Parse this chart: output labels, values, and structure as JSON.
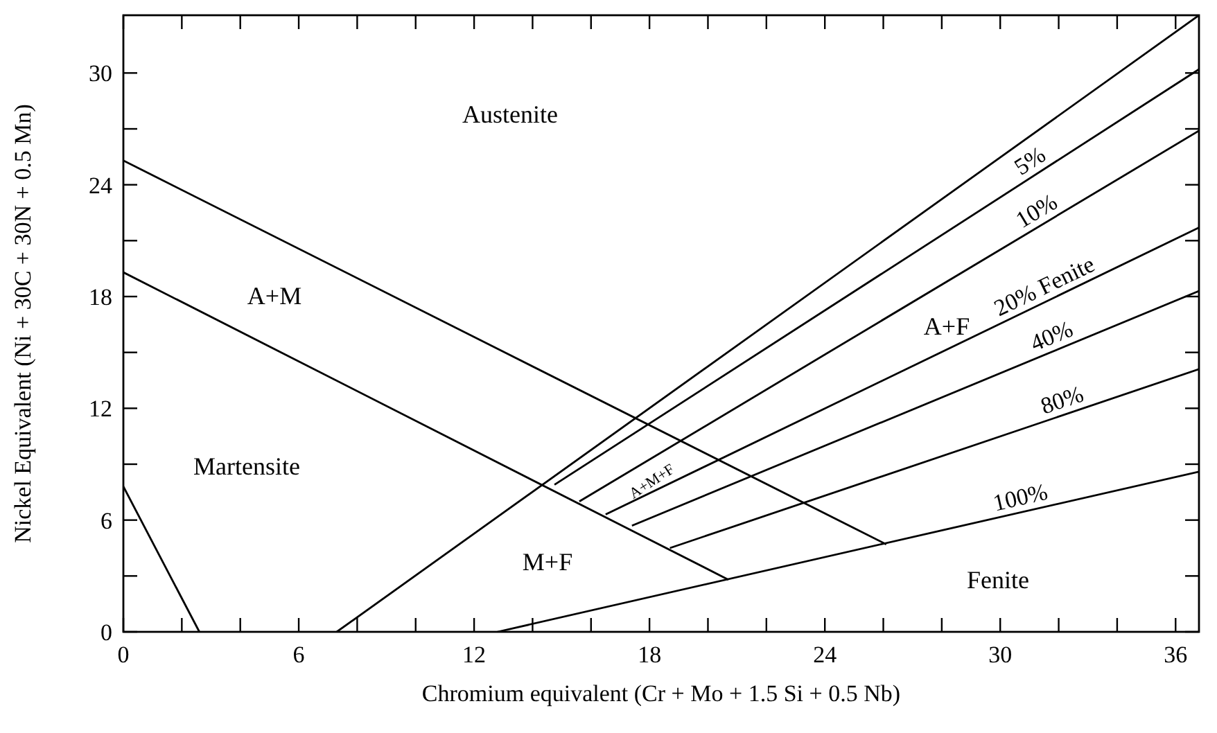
{
  "chart_data": {
    "type": "line",
    "xlabel": "Chromium equivalent (Cr + Mo + 1.5 Si + 0.5 Nb)",
    "ylabel": "Nickel Equivalent (Ni + 30C + 30N + 0.5 Mn)",
    "xlim": [
      0,
      36.8
    ],
    "ylim": [
      0,
      33.1
    ],
    "xticks": [
      0,
      {
        "value": 2,
        "label": null
      },
      {
        "value": 4,
        "label": null
      },
      6,
      {
        "value": 8,
        "label": null
      },
      {
        "value": 10,
        "label": null
      },
      12,
      {
        "value": 14,
        "label": null
      },
      {
        "value": 16,
        "label": null
      },
      18,
      {
        "value": 20,
        "label": null
      },
      {
        "value": 22,
        "label": null
      },
      24,
      {
        "value": 26,
        "label": null
      },
      {
        "value": 28,
        "label": null
      },
      30,
      {
        "value": 32,
        "label": null
      },
      {
        "value": 34,
        "label": null
      },
      36
    ],
    "yticks": [
      0,
      {
        "value": 3,
        "label": null
      },
      6,
      {
        "value": 9,
        "label": null
      },
      12,
      {
        "value": 15,
        "label": null
      },
      18,
      {
        "value": 21,
        "label": null
      },
      24,
      {
        "value": 27,
        "label": null
      },
      30
    ],
    "grid": false,
    "marker": "none",
    "line_style": "solid",
    "series": [
      {
        "color": "#000000",
        "x": [
          0,
          2.6
        ],
        "values": [
          7.8,
          0
        ]
      },
      {
        "color": "#000000",
        "x": [
          0,
          26.1
        ],
        "values": [
          25.3,
          4.7
        ]
      },
      {
        "color": "#000000",
        "x": [
          0,
          20.7
        ],
        "values": [
          19.3,
          2.8
        ]
      },
      {
        "color": "#000000",
        "x": [
          7.3,
          36.8
        ],
        "values": [
          0,
          33.1
        ]
      },
      {
        "name": "5%",
        "color": "#000000",
        "x": [
          14.75,
          36.8
        ],
        "values": [
          7.9,
          30.2
        ]
      },
      {
        "name": "10%",
        "color": "#000000",
        "x": [
          15.6,
          36.8
        ],
        "values": [
          7.0,
          26.9
        ]
      },
      {
        "name": "20% Fenite",
        "color": "#000000",
        "x": [
          16.5,
          36.8
        ],
        "values": [
          6.3,
          21.7
        ]
      },
      {
        "name": "40%",
        "color": "#000000",
        "x": [
          17.4,
          36.8
        ],
        "values": [
          5.7,
          18.3
        ]
      },
      {
        "name": "80%",
        "color": "#000000",
        "x": [
          18.7,
          36.8
        ],
        "values": [
          4.5,
          14.1
        ]
      },
      {
        "name": "100%",
        "color": "#000000",
        "x": [
          12.8,
          36.8
        ],
        "values": [
          0,
          8.6
        ]
      }
    ],
    "annotations": [
      "Austenite",
      "A+M",
      "Martensite",
      "M+F",
      "A+F",
      "Fenite",
      "A+M+F"
    ]
  }
}
